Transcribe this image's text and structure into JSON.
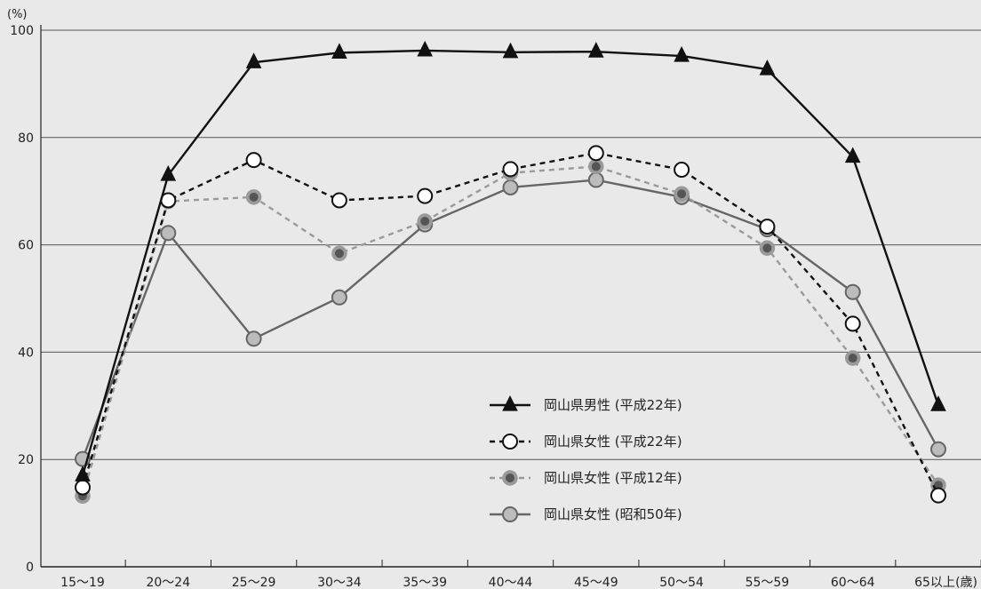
{
  "chart_data": {
    "type": "line",
    "y_unit_label": "(%)",
    "x_unit_label": "(歳)",
    "ylim": [
      0,
      100
    ],
    "yticks": [
      0,
      20,
      40,
      60,
      80,
      100
    ],
    "categories": [
      "15〜19",
      "20〜24",
      "25〜29",
      "30〜34",
      "35〜39",
      "40〜44",
      "45〜49",
      "50〜54",
      "55〜59",
      "60〜64",
      "65以上"
    ],
    "grid": true,
    "legend_position": "bottom-center",
    "series": [
      {
        "name": "岡山県男性 (平成22年)",
        "values": [
          17.0,
          73.0,
          94.0,
          95.8,
          96.2,
          95.9,
          96.0,
          95.2,
          92.7,
          76.4,
          30.1
        ],
        "line_color": "#111111",
        "dash": "solid",
        "marker": "triangle",
        "marker_fill": "#111111",
        "marker_stroke": "#111111"
      },
      {
        "name": "岡山県女性 (平成22年)",
        "values": [
          14.8,
          68.3,
          75.8,
          68.3,
          69.1,
          74.1,
          77.1,
          74.0,
          63.4,
          45.3,
          13.3
        ],
        "line_color": "#111111",
        "dash": "dashed",
        "marker": "circle",
        "marker_fill": "#ffffff",
        "marker_stroke": "#111111"
      },
      {
        "name": "岡山県女性 (平成12年)",
        "values": [
          13.2,
          68.1,
          68.9,
          58.4,
          64.4,
          73.4,
          74.6,
          69.5,
          59.4,
          38.9,
          15.2
        ],
        "line_color": "#9a9a9a",
        "dash": "dashed",
        "marker": "circle-dot",
        "marker_fill": "#9a9a9a",
        "marker_stroke": "#9a9a9a",
        "marker_inner": "#555555"
      },
      {
        "name": "岡山県女性 (昭和50年)",
        "values": [
          20.1,
          62.2,
          42.5,
          50.2,
          63.8,
          70.7,
          72.1,
          68.9,
          62.9,
          51.2,
          21.9
        ],
        "line_color": "#666666",
        "dash": "solid",
        "marker": "circle",
        "marker_fill": "#bcbcbc",
        "marker_stroke": "#666666"
      }
    ]
  }
}
